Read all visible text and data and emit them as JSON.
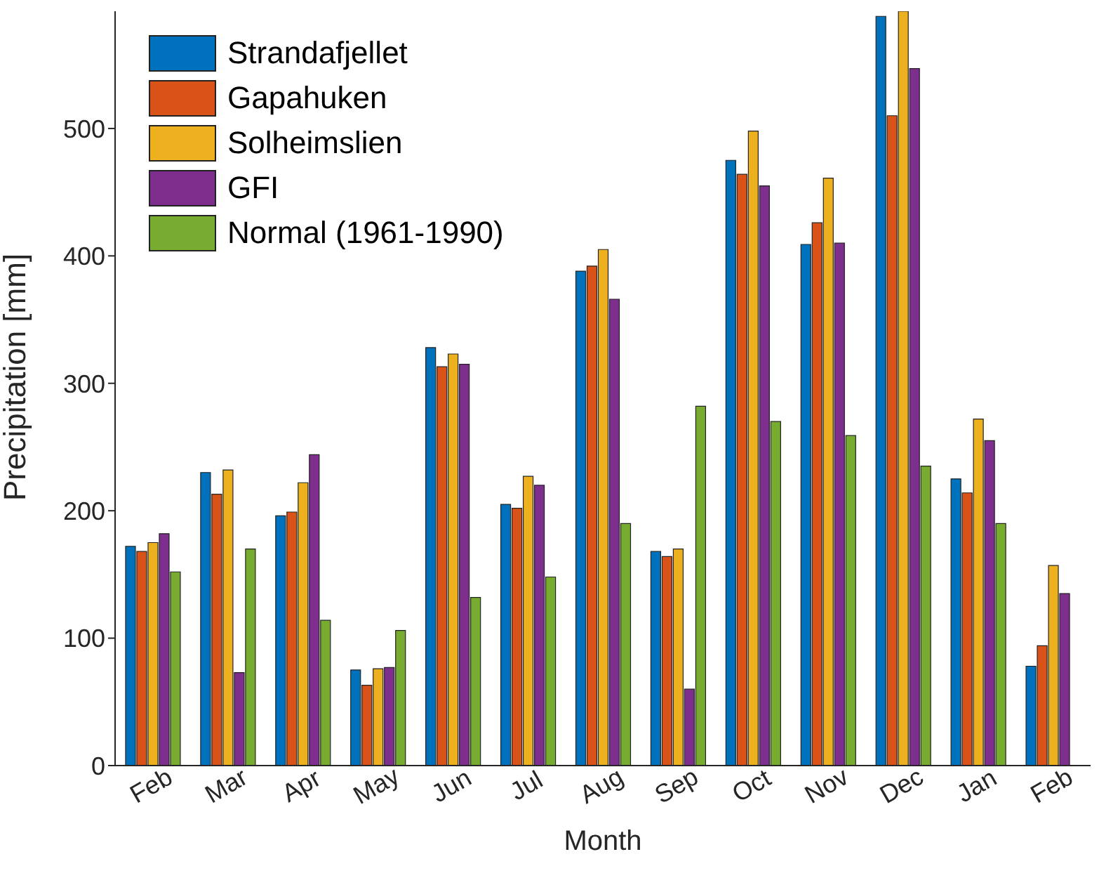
{
  "chart_data": {
    "type": "bar",
    "xlabel": "Month",
    "ylabel": "Precipitation [mm]",
    "categories": [
      "Feb",
      "Mar",
      "Apr",
      "May",
      "Jun",
      "Jul",
      "Aug",
      "Sep",
      "Oct",
      "Nov",
      "Dec",
      "Jan",
      "Feb"
    ],
    "series": [
      {
        "name": "Strandafjellet",
        "color": "#0072bd",
        "values": [
          172,
          230,
          196,
          75,
          328,
          205,
          388,
          168,
          475,
          409,
          588,
          225,
          78
        ]
      },
      {
        "name": "Gapahuken",
        "color": "#d95319",
        "values": [
          168,
          213,
          199,
          63,
          313,
          202,
          392,
          164,
          464,
          426,
          510,
          214,
          94
        ]
      },
      {
        "name": "Solheimslien",
        "color": "#edb120",
        "values": [
          175,
          232,
          222,
          76,
          323,
          227,
          405,
          170,
          498,
          461,
          592,
          272,
          157
        ]
      },
      {
        "name": "GFI",
        "color": "#7e2f8e",
        "values": [
          182,
          73,
          244,
          77,
          315,
          220,
          366,
          60,
          455,
          410,
          547,
          255,
          135
        ]
      },
      {
        "name": "Normal (1961-1990)",
        "color": "#77ac30",
        "values": [
          152,
          170,
          114,
          106,
          132,
          148,
          190,
          282,
          270,
          259,
          235,
          190,
          null
        ]
      }
    ],
    "ylim": [
      0,
      592
    ],
    "yticks": [
      0,
      100,
      200,
      300,
      400,
      500
    ],
    "legend": "top left"
  }
}
